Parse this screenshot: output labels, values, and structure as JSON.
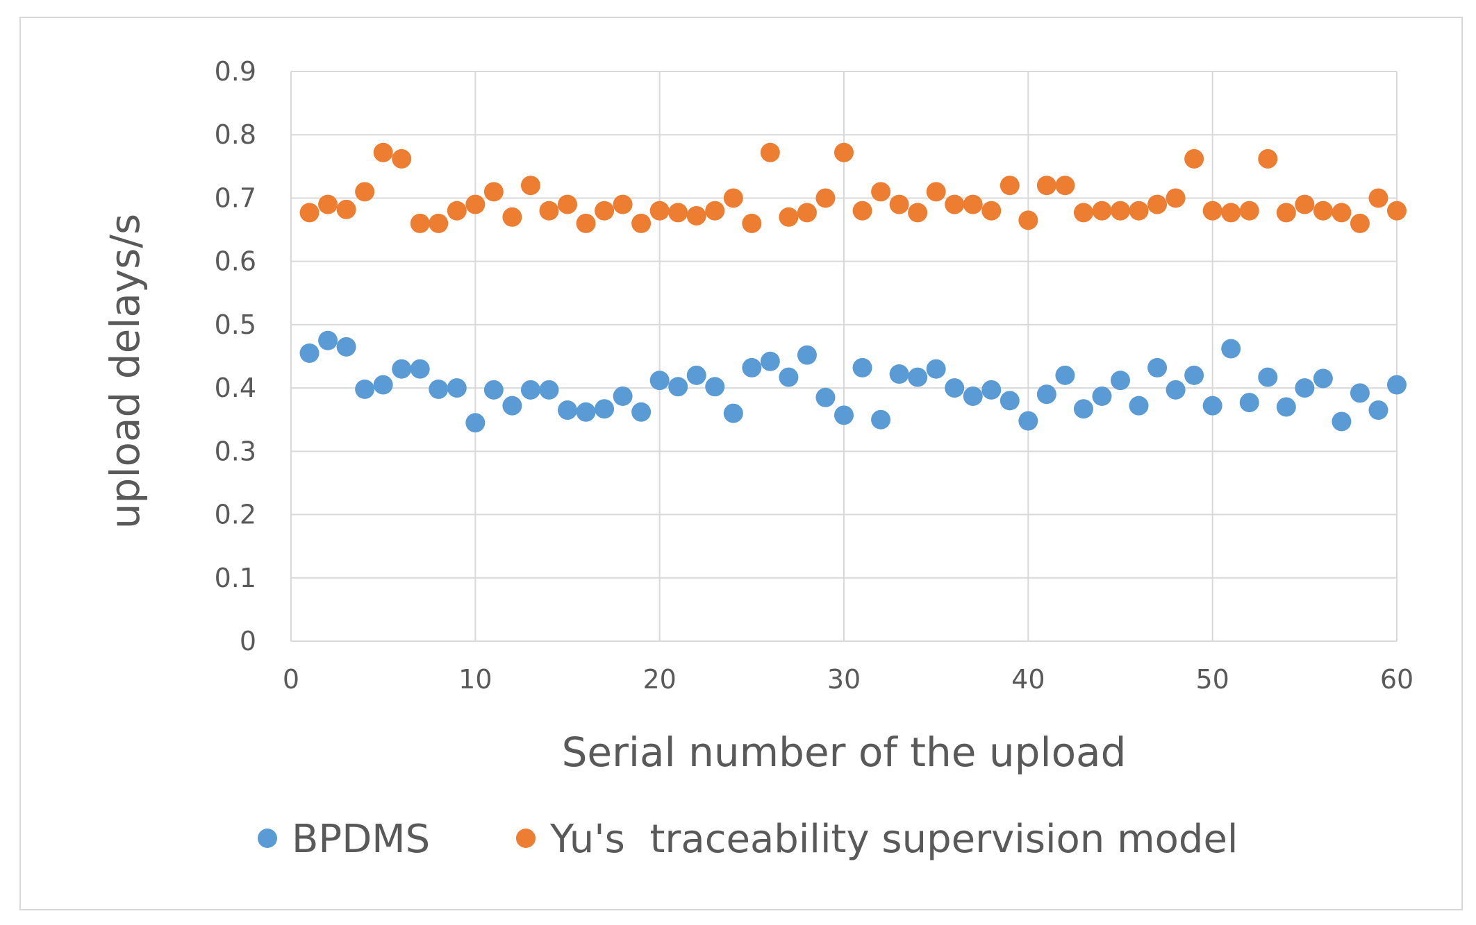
{
  "chart_data": {
    "type": "scatter",
    "title": "",
    "xlabel": "Serial number of the upload",
    "ylabel": "upload delays/s",
    "xlim": [
      0,
      60
    ],
    "ylim": [
      0,
      0.9
    ],
    "x_ticks": [
      0,
      10,
      20,
      30,
      40,
      50,
      60
    ],
    "y_ticks": [
      0,
      0.1,
      0.2,
      0.3,
      0.4,
      0.5,
      0.6,
      0.7,
      0.8,
      0.9
    ],
    "x_tick_labels": [
      "0",
      "10",
      "20",
      "30",
      "40",
      "50",
      "60"
    ],
    "y_tick_labels": [
      "0",
      "0.1",
      "0.2",
      "0.3",
      "0.4",
      "0.5",
      "0.6",
      "0.7",
      "0.8",
      "0.9"
    ],
    "grid": true,
    "legend_position": "bottom",
    "x": [
      1,
      2,
      3,
      4,
      5,
      6,
      7,
      8,
      9,
      10,
      11,
      12,
      13,
      14,
      15,
      16,
      17,
      18,
      19,
      20,
      21,
      22,
      23,
      24,
      25,
      26,
      27,
      28,
      29,
      30,
      31,
      32,
      33,
      34,
      35,
      36,
      37,
      38,
      39,
      40,
      41,
      42,
      43,
      44,
      45,
      46,
      47,
      48,
      49,
      50,
      51,
      52,
      53,
      54,
      55,
      56,
      57,
      58,
      59,
      60
    ],
    "series": [
      {
        "name": "BPDMS",
        "color": "#5b9bd5",
        "values": [
          0.455,
          0.475,
          0.465,
          0.398,
          0.405,
          0.43,
          0.43,
          0.398,
          0.4,
          0.345,
          0.397,
          0.372,
          0.397,
          0.397,
          0.365,
          0.362,
          0.367,
          0.387,
          0.362,
          0.412,
          0.402,
          0.42,
          0.402,
          0.36,
          0.432,
          0.442,
          0.417,
          0.452,
          0.385,
          0.357,
          0.432,
          0.35,
          0.422,
          0.417,
          0.43,
          0.4,
          0.387,
          0.397,
          0.38,
          0.348,
          0.39,
          0.42,
          0.367,
          0.387,
          0.412,
          0.372,
          0.432,
          0.397,
          0.42,
          0.372,
          0.462,
          0.377,
          0.417,
          0.37,
          0.4,
          0.415,
          0.347,
          0.392,
          0.365,
          0.405
        ]
      },
      {
        "name": "Yu's  traceability supervision model",
        "color": "#ed7d31",
        "values": [
          0.677,
          0.69,
          0.682,
          0.71,
          0.772,
          0.762,
          0.66,
          0.66,
          0.68,
          0.69,
          0.71,
          0.67,
          0.72,
          0.68,
          0.69,
          0.66,
          0.68,
          0.69,
          0.66,
          0.68,
          0.677,
          0.672,
          0.68,
          0.7,
          0.66,
          0.772,
          0.67,
          0.677,
          0.7,
          0.772,
          0.68,
          0.71,
          0.69,
          0.677,
          0.71,
          0.69,
          0.69,
          0.68,
          0.72,
          0.665,
          0.72,
          0.72,
          0.677,
          0.68,
          0.68,
          0.68,
          0.69,
          0.7,
          0.762,
          0.68,
          0.677,
          0.68,
          0.762,
          0.677,
          0.69,
          0.68,
          0.677,
          0.66,
          0.7,
          0.68
        ]
      }
    ]
  },
  "colors": {
    "grid": "#d9d9d9",
    "axis_text": "#595959",
    "frame": "#d9d9d9"
  }
}
